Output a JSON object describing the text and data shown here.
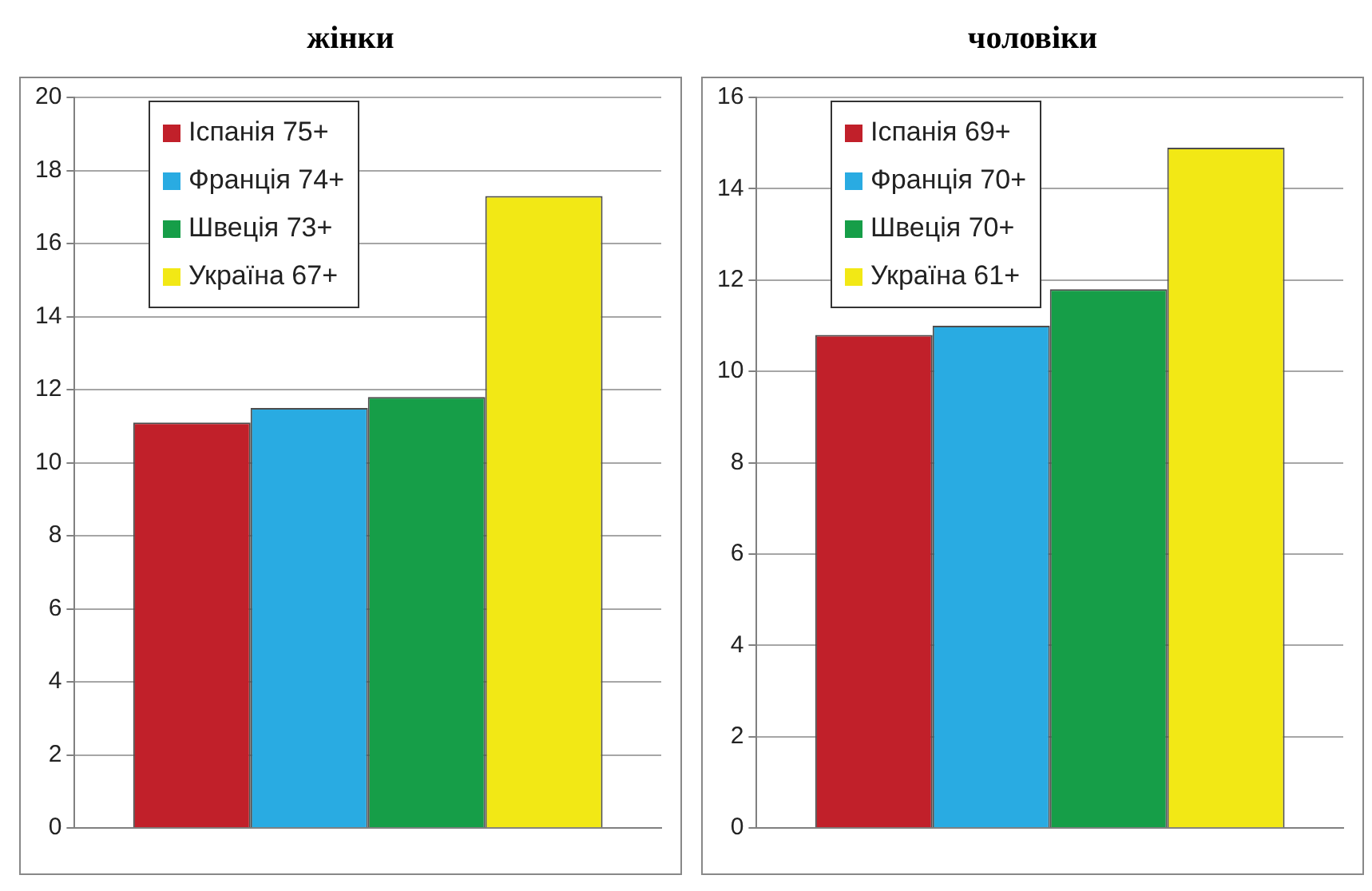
{
  "chart_data": [
    {
      "type": "bar",
      "title": "жінки",
      "categories": [
        null
      ],
      "ylim": [
        0,
        20
      ],
      "yticks": [
        0,
        2,
        4,
        6,
        8,
        10,
        12,
        14,
        16,
        18,
        20
      ],
      "grid": "y",
      "legend": "top left",
      "series": [
        {
          "name": "Іспанія 75+",
          "color": "#c1202a",
          "values": [
            11.1
          ]
        },
        {
          "name": "Франція 74+",
          "color": "#29abe2",
          "values": [
            11.5
          ]
        },
        {
          "name": "Швеція 73+",
          "color": "#169e48",
          "values": [
            11.8
          ]
        },
        {
          "name": "Україна 67+",
          "color": "#f2e815",
          "values": [
            17.3
          ]
        }
      ]
    },
    {
      "type": "bar",
      "title": "чоловіки",
      "categories": [
        null
      ],
      "ylim": [
        0,
        16
      ],
      "yticks": [
        0,
        2,
        4,
        6,
        8,
        10,
        12,
        14,
        16
      ],
      "grid": "y",
      "legend": "top left",
      "series": [
        {
          "name": "Іспанія 69+",
          "color": "#c1202a",
          "values": [
            10.8
          ]
        },
        {
          "name": "Франція 70+",
          "color": "#29abe2",
          "values": [
            11.0
          ]
        },
        {
          "name": "Швеція 70+",
          "color": "#169e48",
          "values": [
            11.8
          ]
        },
        {
          "name": "Україна 61+",
          "color": "#f2e815",
          "values": [
            14.9
          ]
        }
      ]
    }
  ]
}
